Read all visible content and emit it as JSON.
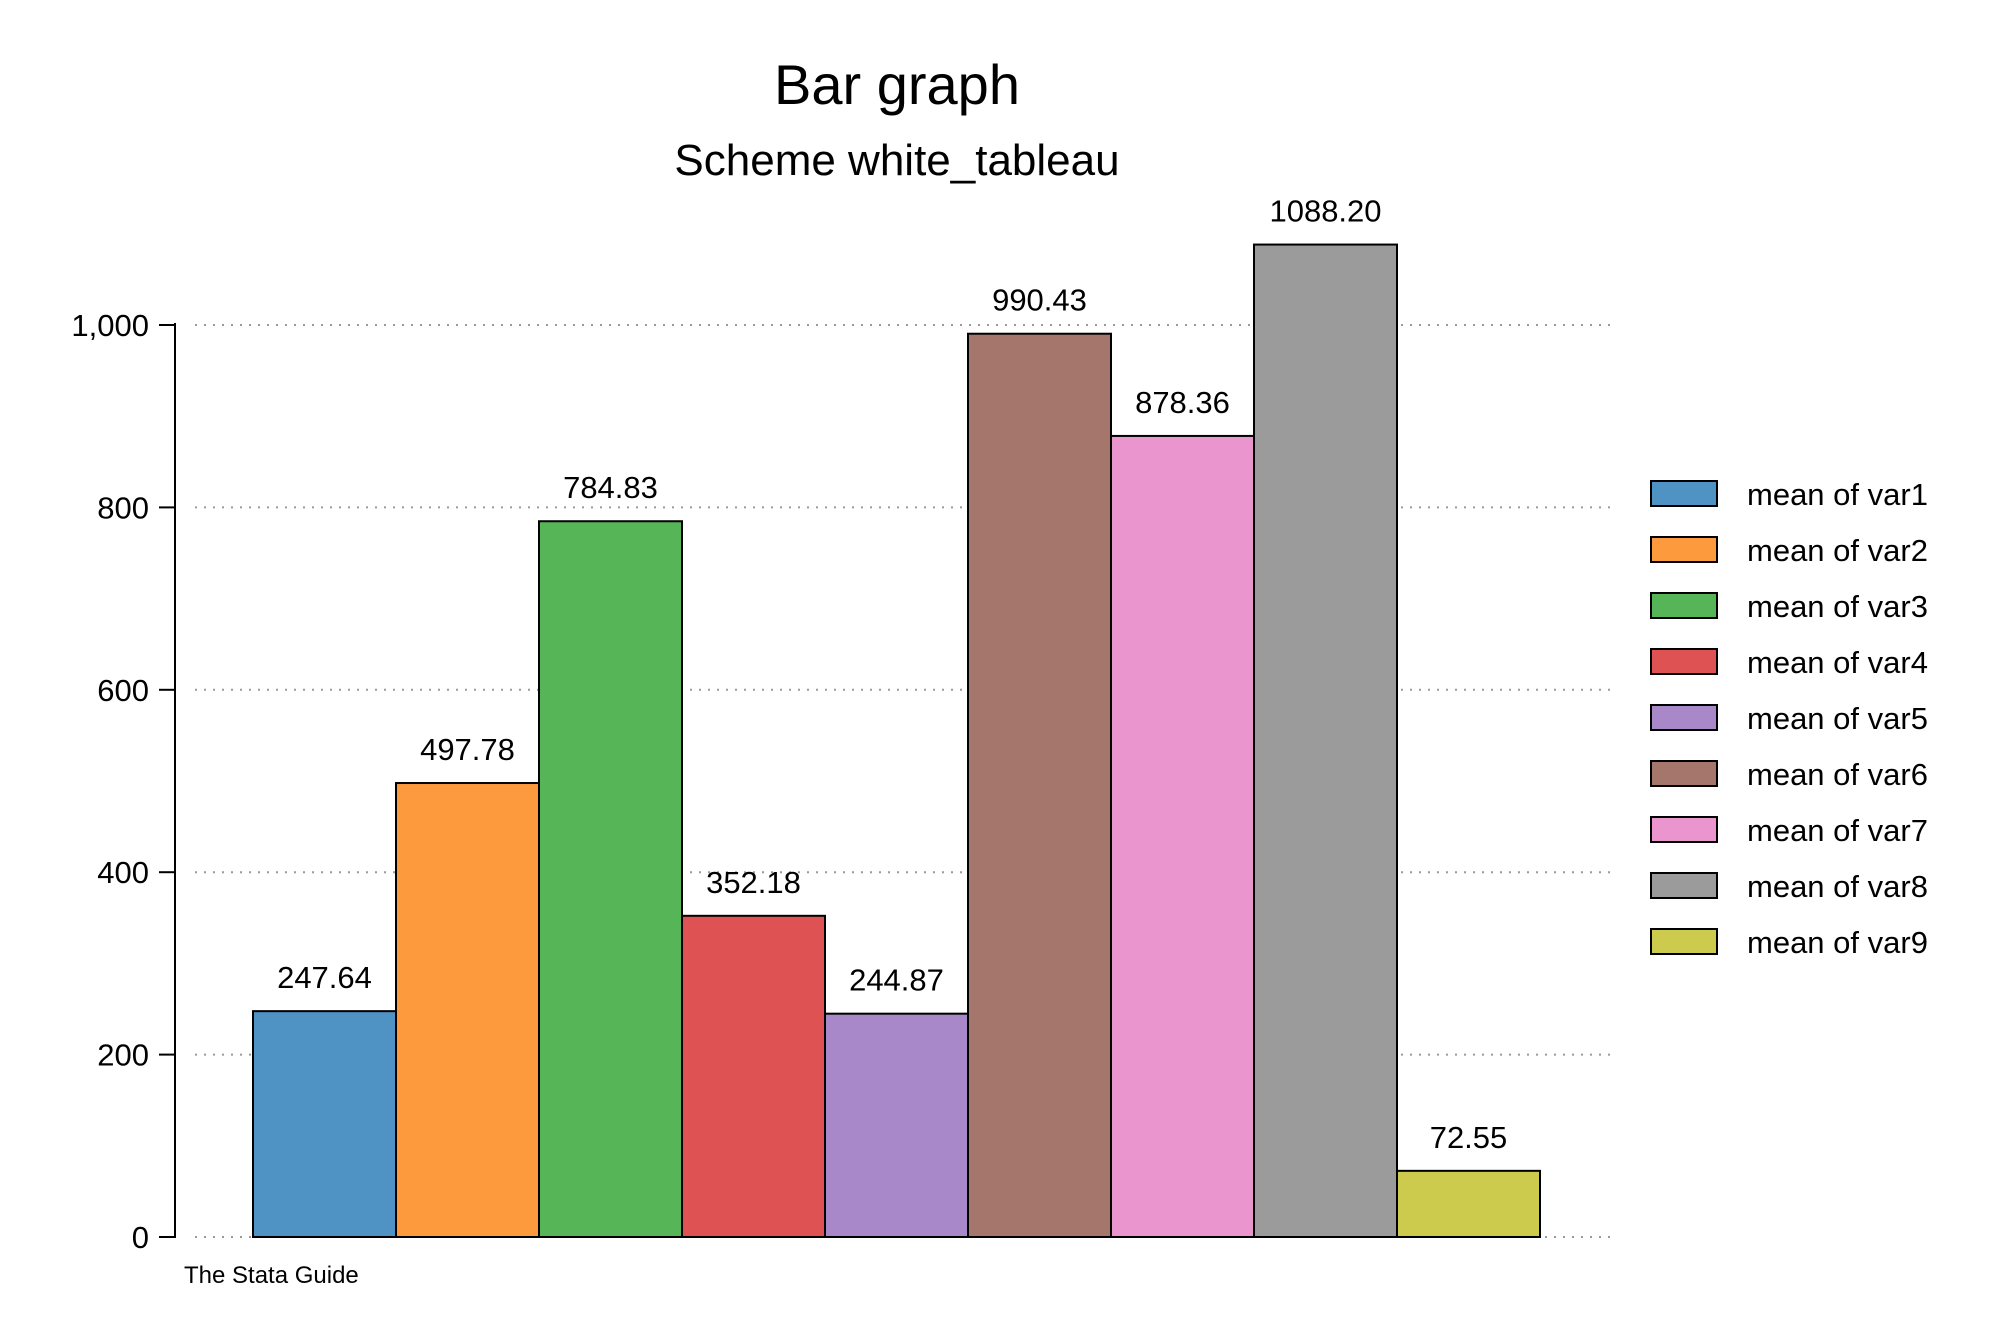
{
  "chart_data": {
    "type": "bar",
    "title": "Bar graph",
    "subtitle": "Scheme white_tableau",
    "note": "The Stata Guide",
    "xlabel": "",
    "ylabel": "",
    "ylim": [
      0,
      1100
    ],
    "yticks": [
      0,
      200,
      400,
      600,
      800,
      1000
    ],
    "ytick_labels": [
      "0",
      "200",
      "400",
      "600",
      "800",
      "1,000"
    ],
    "grid": true,
    "legend_position": "right",
    "series": [
      {
        "name": "mean of var1",
        "value": 247.64,
        "label": "247.64",
        "color": "#4e93c3"
      },
      {
        "name": "mean of var2",
        "value": 497.78,
        "label": "497.78",
        "color": "#fd9a3d"
      },
      {
        "name": "mean of var3",
        "value": 784.83,
        "label": "784.83",
        "color": "#56b556"
      },
      {
        "name": "mean of var4",
        "value": 352.18,
        "label": "352.18",
        "color": "#de5254"
      },
      {
        "name": "mean of var5",
        "value": 244.87,
        "label": "244.87",
        "color": "#a888c9"
      },
      {
        "name": "mean of var6",
        "value": 990.43,
        "label": "990.43",
        "color": "#a5776c"
      },
      {
        "name": "mean of var7",
        "value": 878.36,
        "label": "878.36",
        "color": "#ea95cd"
      },
      {
        "name": "mean of var8",
        "value": 1088.2,
        "label": "1088.20",
        "color": "#9b9b9b"
      },
      {
        "name": "mean of var9",
        "value": 72.55,
        "label": "72.55",
        "color": "#cccb4e"
      }
    ]
  }
}
